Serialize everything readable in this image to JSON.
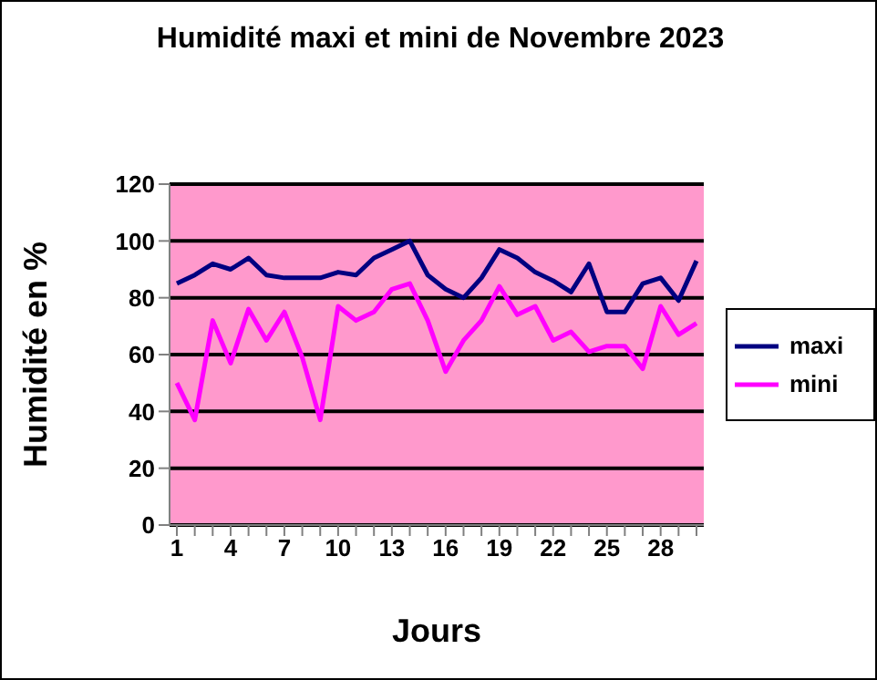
{
  "chart_data": {
    "type": "line",
    "title": "Humidité maxi et mini de Novembre 2023",
    "xlabel": "Jours",
    "ylabel": "Humidité en %",
    "categories": [
      "1",
      null,
      null,
      "4",
      null,
      null,
      "7",
      null,
      null,
      "10",
      null,
      null,
      "13",
      null,
      null,
      "16",
      null,
      null,
      "19",
      null,
      null,
      "22",
      null,
      null,
      "25",
      null,
      null,
      "28",
      null,
      null
    ],
    "series": [
      {
        "name": "maxi",
        "color": "#000080",
        "values": [
          85,
          88,
          92,
          90,
          94,
          88,
          87,
          87,
          87,
          89,
          88,
          94,
          97,
          100,
          88,
          83,
          80,
          87,
          97,
          94,
          89,
          86,
          82,
          92,
          75,
          75,
          85,
          87,
          79,
          93
        ]
      },
      {
        "name": "mini",
        "color": "#ff00ff",
        "values": [
          50,
          37,
          72,
          57,
          76,
          65,
          75,
          59,
          37,
          77,
          72,
          75,
          83,
          85,
          72,
          54,
          65,
          72,
          84,
          74,
          77,
          65,
          68,
          61,
          63,
          63,
          55,
          77,
          67,
          71
        ]
      }
    ],
    "ylim": [
      0,
      120
    ],
    "yticks": [
      0,
      20,
      40,
      60,
      80,
      100,
      120
    ],
    "grid": "y",
    "legend": "right",
    "marker": "none",
    "line_style": "solid"
  }
}
